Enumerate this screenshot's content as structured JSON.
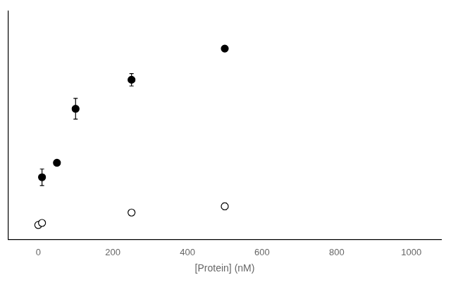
{
  "chart_data": {
    "type": "scatter",
    "xlabel": "[Protein] (nM)",
    "xlim": [
      -80,
      1080
    ],
    "xticks": [
      0,
      200,
      400,
      600,
      800,
      1000
    ],
    "ylim": [
      -0.05,
      1.05
    ],
    "yticks": [],
    "grid": false,
    "tick_labels": "x",
    "series": [
      {
        "x": [
          10,
          50,
          100,
          250,
          500
        ],
        "values": [
          0.25,
          0.32,
          0.58,
          0.72,
          0.87
        ],
        "yerr": [
          0.04,
          0.0,
          0.05,
          0.03,
          0.0
        ],
        "color": "#000000",
        "marker": "filled_circle"
      },
      {
        "x": [
          0,
          10,
          250,
          500
        ],
        "values": [
          0.02,
          0.03,
          0.08,
          0.11
        ],
        "yerr": [
          0.01,
          0.0,
          0.0,
          0.015
        ],
        "color": "#000000",
        "marker": "open_circle"
      }
    ]
  }
}
